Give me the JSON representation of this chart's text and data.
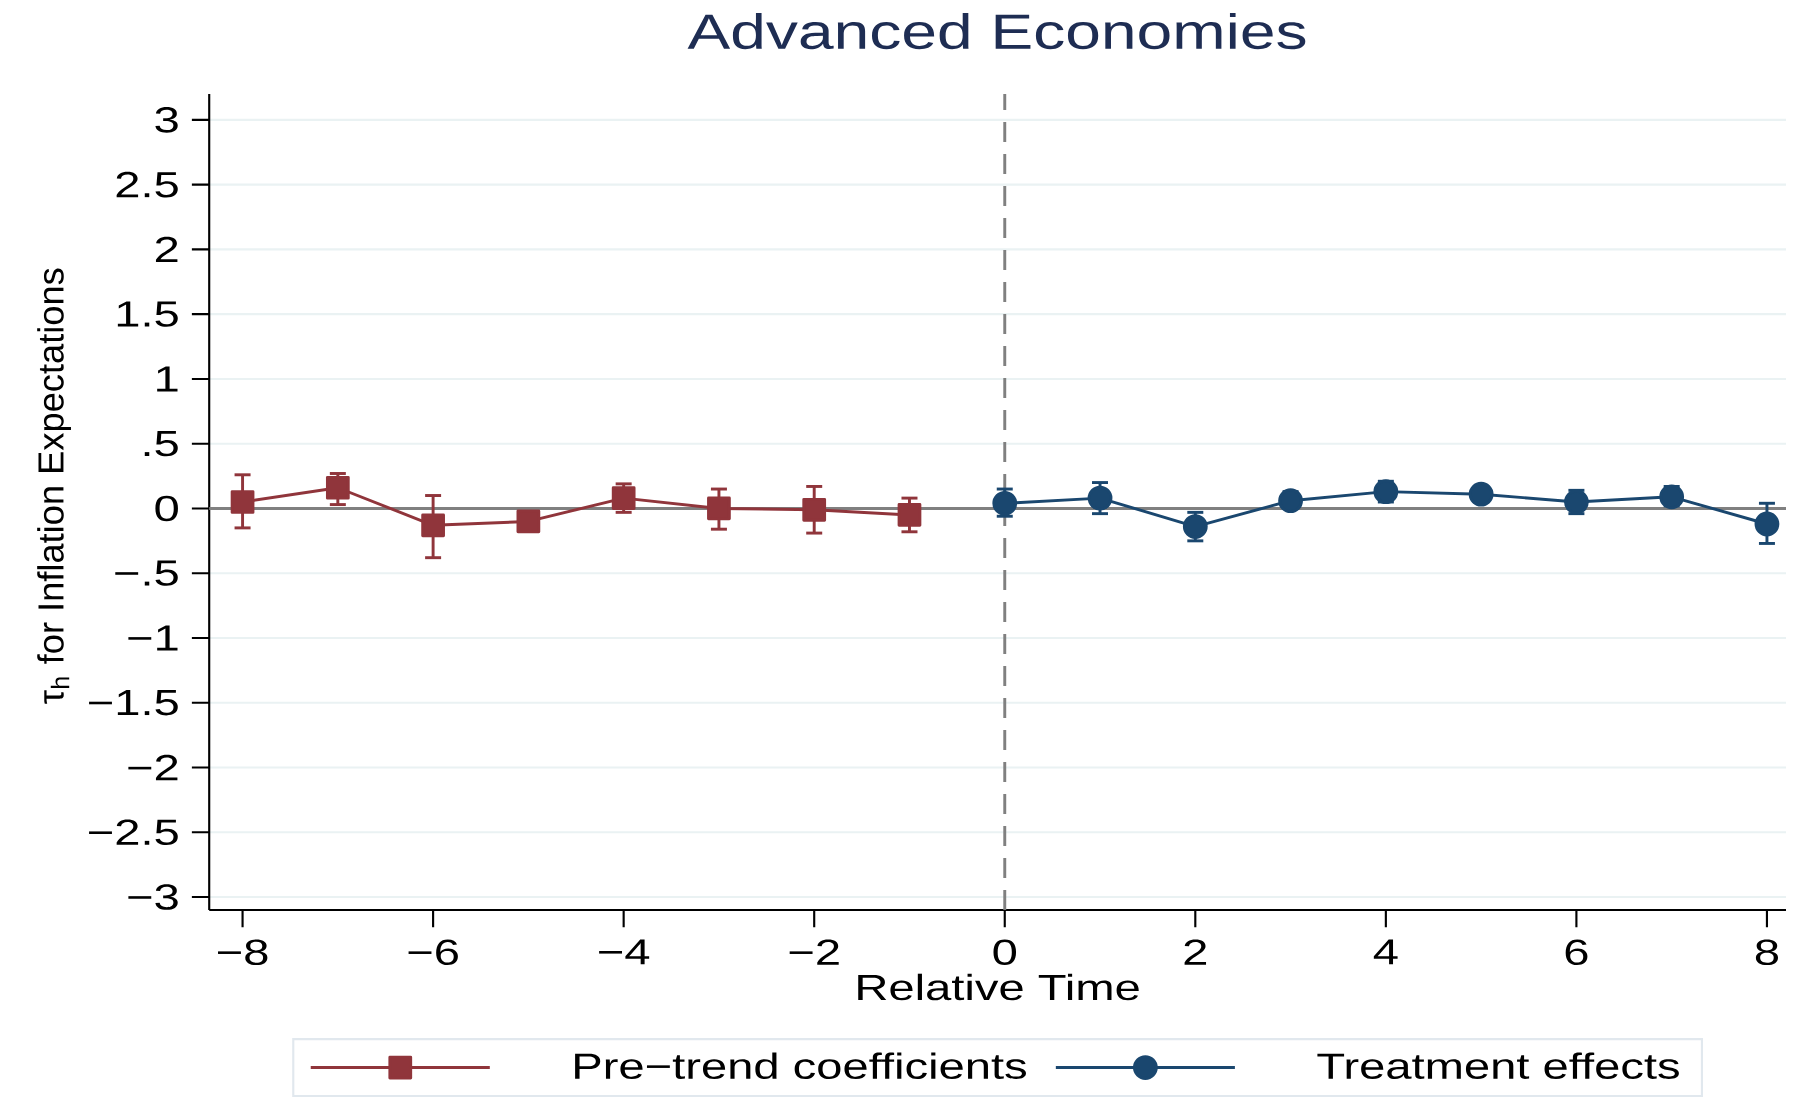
{
  "chart_data": {
    "type": "line",
    "title": "Advanced Economies",
    "xlabel": "Relative Time",
    "ylabel": "τ$_{h}$ for Inflation Expectations",
    "xlim": [
      -8.35,
      8.2
    ],
    "xticks": [
      {
        "value": -8,
        "label": "−8"
      },
      {
        "value": -6,
        "label": "−6"
      },
      {
        "value": -4,
        "label": "−4"
      },
      {
        "value": -2,
        "label": "−2"
      },
      0,
      2,
      4,
      6,
      8
    ],
    "ylim": [
      -3.1,
      3.2
    ],
    "yticks": [
      {
        "value": -3,
        "label": "−3"
      },
      {
        "value": -2.5,
        "label": "−2.5"
      },
      {
        "value": -2,
        "label": "−2"
      },
      {
        "value": -1.5,
        "label": "−1.5"
      },
      {
        "value": -1,
        "label": "−1"
      },
      {
        "value": -0.5,
        "label": "−.5"
      },
      0,
      {
        "value": 0.5,
        "label": ".5"
      },
      1,
      1.5,
      2,
      2.5,
      3
    ],
    "grid": "y",
    "legend": "bottom",
    "line_style": "solid",
    "series": [
      {
        "name": "Pre−trend coefficients",
        "color": "#90353b",
        "marker": "square",
        "x": [
          -8,
          -7,
          -6,
          -5,
          -4,
          -3,
          -2,
          -1
        ],
        "values": [
          0.05,
          0.16,
          -0.13,
          -0.1,
          0.08,
          0.0,
          -0.01,
          -0.05
        ],
        "errors": [
          [
            -0.15,
            0.26
          ],
          [
            0.03,
            0.27
          ],
          [
            -0.38,
            0.1
          ],
          null,
          [
            -0.03,
            0.19
          ],
          [
            -0.16,
            0.15
          ],
          [
            -0.19,
            0.17
          ],
          [
            -0.18,
            0.08
          ]
        ]
      },
      {
        "name": "Treatment effects",
        "color": "#1a476f",
        "marker": "circle",
        "x": [
          0,
          1,
          2,
          3,
          4,
          5,
          6,
          7,
          8
        ],
        "values": [
          0.04,
          0.08,
          -0.14,
          0.06,
          0.13,
          0.11,
          0.05,
          0.09,
          -0.12
        ],
        "errors": [
          [
            -0.06,
            0.15
          ],
          [
            -0.04,
            0.2
          ],
          [
            -0.25,
            -0.03
          ],
          [
            0.0,
            0.13
          ],
          [
            0.05,
            0.21
          ],
          [
            0.05,
            0.17
          ],
          [
            -0.04,
            0.14
          ],
          [
            0.02,
            0.17
          ],
          [
            -0.27,
            0.04
          ]
        ]
      }
    ],
    "ref_lines": [
      {
        "axis": "x",
        "value": 0,
        "color": "#808080",
        "line_style": "dashed"
      },
      {
        "axis": "y",
        "value": 0,
        "color": "#808080",
        "line_style": "solid"
      }
    ]
  }
}
